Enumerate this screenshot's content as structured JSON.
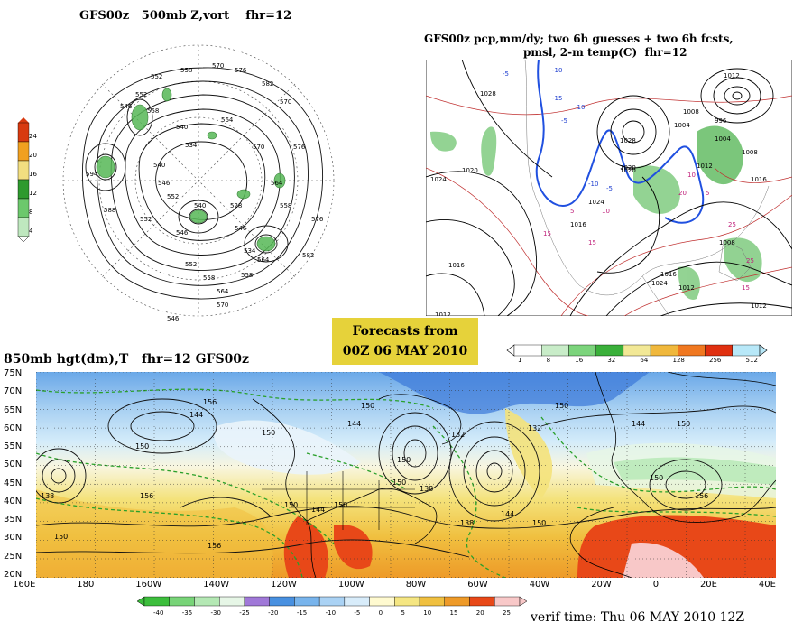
{
  "panel_500mb": {
    "title": "GFS00z   500mb Z,vort    fhr=12",
    "colorbar_labels": [
      "24",
      "20",
      "16",
      "12",
      "8",
      "4"
    ],
    "colorbar_colors": [
      "#d83a10",
      "#f0a020",
      "#f2de80",
      "#2e9a2e",
      "#6cc86c",
      "#bfe8bf"
    ],
    "contour_labels": [
      "552",
      "558",
      "570",
      "576",
      "582",
      "570",
      "540",
      "534",
      "546",
      "552",
      "558",
      "540",
      "546",
      "552",
      "564",
      "570",
      "576",
      "564",
      "558",
      "546",
      "534",
      "528",
      "540",
      "546",
      "552",
      "558",
      "564",
      "570",
      "576",
      "582",
      "564",
      "558",
      "552",
      "546",
      "588",
      "594"
    ]
  },
  "panel_precip": {
    "title_line1": "GFS00z pcp,mm/dy; two 6h guesses + two 6h fcsts,",
    "title_line2": "pmsl, 2-m temp(C)  fhr=12",
    "isobar_labels": [
      "1028",
      "1024",
      "1020",
      "1016",
      "1012",
      "1008",
      "1004",
      "1028",
      "1020",
      "1024",
      "1016",
      "1012",
      "1008",
      "1020",
      "1016",
      "1024",
      "1012",
      "996",
      "1004",
      "1008",
      "1016",
      "1012",
      "1012"
    ],
    "temp_labels": [
      "-5",
      "-10",
      "-15",
      "-10",
      "-5",
      "-10",
      "-5",
      "5",
      "10",
      "15",
      "15",
      "10",
      "20",
      "25",
      "25",
      "15",
      "5"
    ],
    "colorbar_labels": [
      "1",
      "8",
      "16",
      "32",
      "64",
      "128",
      "256",
      "512"
    ],
    "colorbar_colors": [
      "#ffffff",
      "#c8ecc8",
      "#7cd47c",
      "#3ab03a",
      "#f2e896",
      "#f0b83c",
      "#f07820",
      "#e03010",
      "#b8e8f8"
    ]
  },
  "header": {
    "line1": "Forecasts from",
    "line2": "00Z 06 MAY 2010"
  },
  "panel_850mb": {
    "title": "850mb hgt(dm),T   fhr=12 GFS00z",
    "lat_labels": [
      "75N",
      "70N",
      "65N",
      "60N",
      "55N",
      "50N",
      "45N",
      "40N",
      "35N",
      "30N",
      "25N",
      "20N"
    ],
    "lon_labels": [
      "160E",
      "180",
      "160W",
      "140W",
      "120W",
      "100W",
      "80W",
      "60W",
      "40W",
      "20W",
      "0",
      "20E",
      "40E"
    ],
    "height_labels": [
      "156",
      "144",
      "150",
      "150",
      "156",
      "150",
      "144",
      "150",
      "156",
      "132",
      "138",
      "132",
      "150",
      "144",
      "150",
      "150",
      "144",
      "138",
      "150",
      "144",
      "150",
      "150",
      "150",
      "156",
      "138",
      "150"
    ],
    "colorbar_labels": [
      "-40",
      "-35",
      "-30",
      "-25",
      "-20",
      "-15",
      "-10",
      "-5",
      "0",
      "5",
      "10",
      "15",
      "20",
      "25"
    ],
    "colorbar_colors": [
      "#3cbe3c",
      "#78d478",
      "#b4e8b4",
      "#e6f6e6",
      "#a078d8",
      "#4890e0",
      "#78b4ec",
      "#aad2f4",
      "#d8ecfa",
      "#fffad0",
      "#f5e682",
      "#f0c040",
      "#ee9a28",
      "#e84818",
      "#f8c8c8"
    ]
  },
  "verif_time": "verif time: Thu 06 MAY 2010 12Z"
}
